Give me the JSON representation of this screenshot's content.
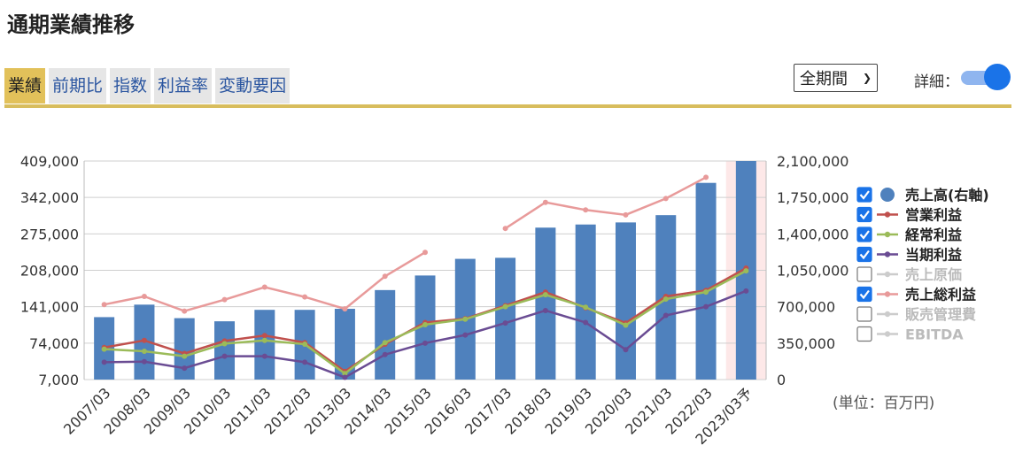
{
  "page": {
    "title": "通期業績推移"
  },
  "tabs": [
    {
      "label": "業績",
      "active": true
    },
    {
      "label": "前期比",
      "active": false
    },
    {
      "label": "指数",
      "active": false
    },
    {
      "label": "利益率",
      "active": false
    },
    {
      "label": "変動要因",
      "active": false
    }
  ],
  "controls": {
    "period_value": "全期間",
    "detail_label": "詳細：",
    "detail_on": true
  },
  "unit_label": "(単位：百万円)",
  "colors": {
    "bar": "#4f81bd",
    "operating": "#c0504d",
    "ordinary": "#9bbb59",
    "net": "#6a4c93",
    "gross": "#e89a9a",
    "forecast_band": "#fde8e8",
    "accent": "#d8bd5d"
  },
  "chart_data": {
    "type": "bar",
    "categories": [
      "2007/03",
      "2008/03",
      "2009/03",
      "2010/03",
      "2011/03",
      "2012/03",
      "2013/03",
      "2014/03",
      "2015/03",
      "2016/03",
      "2017/03",
      "2018/03",
      "2019/03",
      "2020/03",
      "2021/03",
      "2022/03",
      "2023/03予"
    ],
    "left_axis": {
      "ticks": [
        "409,000",
        "342,000",
        "275,000",
        "208,000",
        "141,000",
        "74,000",
        "7,000"
      ],
      "ylim": [
        7000,
        409000
      ]
    },
    "right_axis": {
      "ticks": [
        "2,100,000",
        "1,750,000",
        "1,400,000",
        "1,050,000",
        "700,000",
        "350,000",
        "0"
      ],
      "ylim": [
        0,
        2100000
      ]
    },
    "forecast_from_index": 16,
    "bar_series": {
      "name": "売上高(右軸)",
      "axis": "right",
      "values": [
        600000,
        720000,
        590000,
        560000,
        670000,
        670000,
        680000,
        860000,
        1000000,
        1160000,
        1170000,
        1460000,
        1490000,
        1510000,
        1580000,
        1890000,
        2100000
      ]
    },
    "series": [
      {
        "name": "営業利益",
        "color": "#c0504d",
        "values": [
          66000,
          79000,
          55000,
          78000,
          88000,
          75000,
          22000,
          72000,
          112000,
          119000,
          143000,
          168000,
          139000,
          111000,
          160000,
          171000,
          212000
        ]
      },
      {
        "name": "経常利益",
        "color": "#9bbb59",
        "values": [
          63000,
          59000,
          50000,
          73000,
          79000,
          72000,
          18000,
          75000,
          108000,
          118000,
          141000,
          163000,
          140000,
          107000,
          155000,
          168000,
          207000
        ]
      },
      {
        "name": "当期利益",
        "color": "#6a4c93",
        "values": [
          39000,
          40000,
          28000,
          50000,
          50000,
          39000,
          11000,
          53000,
          74000,
          89000,
          111000,
          134000,
          112000,
          62000,
          125000,
          141000,
          170000
        ]
      },
      {
        "name": "売上総利益",
        "color": "#e89a9a",
        "dash": false,
        "values": [
          145000,
          160000,
          133000,
          154000,
          177000,
          159000,
          137000,
          197000,
          241000,
          null,
          285000,
          333000,
          319000,
          310000,
          340000,
          379000,
          null
        ]
      }
    ],
    "legend": [
      {
        "label": "売上高(右軸)",
        "checked": true,
        "marker": "dot",
        "color": "#4f81bd"
      },
      {
        "label": "営業利益",
        "checked": true,
        "marker": "line-square",
        "color": "#c0504d"
      },
      {
        "label": "経常利益",
        "checked": true,
        "marker": "line-triangle",
        "color": "#9bbb59"
      },
      {
        "label": "当期利益",
        "checked": true,
        "marker": "line-cross",
        "color": "#6a4c93"
      },
      {
        "label": "売上原価",
        "checked": false,
        "marker": "line-dash",
        "color": "#cccccc"
      },
      {
        "label": "売上総利益",
        "checked": true,
        "marker": "line-diamond",
        "color": "#e89a9a"
      },
      {
        "label": "販売管理費",
        "checked": false,
        "marker": "line-dash",
        "color": "#cccccc"
      },
      {
        "label": "EBITDA",
        "checked": false,
        "marker": "line-dash",
        "color": "#cccccc"
      }
    ],
    "legend_position": "right",
    "grid": true
  }
}
